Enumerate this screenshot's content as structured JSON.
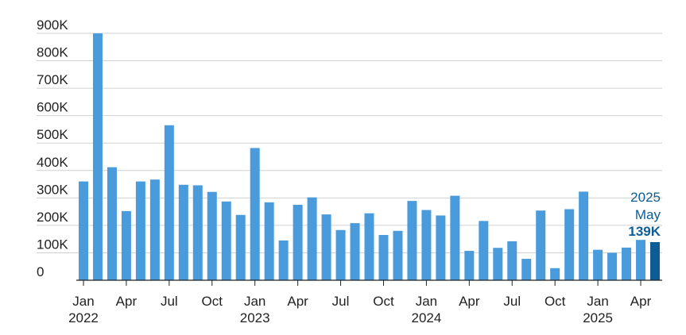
{
  "chart_data": {
    "type": "bar",
    "title": "",
    "xlabel": "",
    "ylabel": "",
    "ylim": [
      0,
      900000
    ],
    "yticks": [
      {
        "value": 0,
        "label": "0"
      },
      {
        "value": 100000,
        "label": "100K"
      },
      {
        "value": 200000,
        "label": "200K"
      },
      {
        "value": 300000,
        "label": "300K"
      },
      {
        "value": 400000,
        "label": "400K"
      },
      {
        "value": 500000,
        "label": "500K"
      },
      {
        "value": 600000,
        "label": "600K"
      },
      {
        "value": 700000,
        "label": "700K"
      },
      {
        "value": 800000,
        "label": "800K"
      },
      {
        "value": 900000,
        "label": "900K"
      }
    ],
    "grid": true,
    "categories": [
      "2022-01",
      "2022-02",
      "2022-03",
      "2022-04",
      "2022-05",
      "2022-06",
      "2022-07",
      "2022-08",
      "2022-09",
      "2022-10",
      "2022-11",
      "2022-12",
      "2023-01",
      "2023-02",
      "2023-03",
      "2023-04",
      "2023-05",
      "2023-06",
      "2023-07",
      "2023-08",
      "2023-09",
      "2023-10",
      "2023-11",
      "2023-12",
      "2024-01",
      "2024-02",
      "2024-03",
      "2024-04",
      "2024-05",
      "2024-06",
      "2024-07",
      "2024-08",
      "2024-09",
      "2024-10",
      "2024-11",
      "2024-12",
      "2025-01",
      "2025-02",
      "2025-03",
      "2025-04",
      "2025-05"
    ],
    "values": [
      360000,
      900000,
      412000,
      252000,
      360000,
      367000,
      565000,
      348000,
      346000,
      322000,
      287000,
      238000,
      482000,
      284000,
      145000,
      275000,
      302000,
      240000,
      183000,
      208000,
      244000,
      165000,
      180000,
      289000,
      256000,
      236000,
      308000,
      107000,
      216000,
      118000,
      142000,
      78000,
      254000,
      44000,
      259000,
      323000,
      111000,
      100000,
      119000,
      147000,
      139000
    ],
    "xtick_labels": [
      {
        "category": "2022-01",
        "month": "Jan",
        "year": "2022"
      },
      {
        "category": "2022-04",
        "month": "Apr",
        "year": ""
      },
      {
        "category": "2022-07",
        "month": "Jul",
        "year": ""
      },
      {
        "category": "2022-10",
        "month": "Oct",
        "year": ""
      },
      {
        "category": "2023-01",
        "month": "Jan",
        "year": "2023"
      },
      {
        "category": "2023-04",
        "month": "Apr",
        "year": ""
      },
      {
        "category": "2023-07",
        "month": "Jul",
        "year": ""
      },
      {
        "category": "2023-10",
        "month": "Oct",
        "year": ""
      },
      {
        "category": "2024-01",
        "month": "Jan",
        "year": "2024"
      },
      {
        "category": "2024-04",
        "month": "Apr",
        "year": ""
      },
      {
        "category": "2024-07",
        "month": "Jul",
        "year": ""
      },
      {
        "category": "2024-10",
        "month": "Oct",
        "year": ""
      },
      {
        "category": "2025-01",
        "month": "Jan",
        "year": "2025"
      },
      {
        "category": "2025-04",
        "month": "Apr",
        "year": ""
      }
    ],
    "annotation": {
      "category": "2025-05",
      "year": "2025",
      "month": "May",
      "value_label": "139K"
    },
    "colors": {
      "bar": "#4a9bdc",
      "highlight_bar": "#0d5c96",
      "annotation_text": "#0d5c96",
      "grid": "#d0d0d0",
      "axis": "#222222"
    }
  }
}
